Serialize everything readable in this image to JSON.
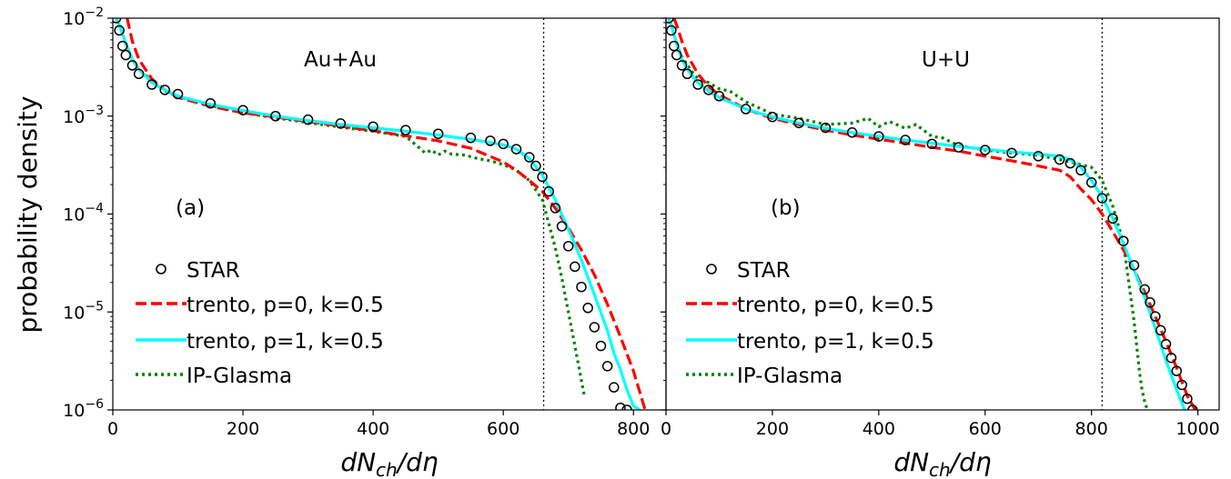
{
  "figure": {
    "ylabel": "probability density",
    "colors": {
      "star": "#000000",
      "trento_p0": "#ff0000",
      "trento_p1": "#00ffff",
      "ipglasma": "#008000",
      "vline": "#000000"
    }
  },
  "chart_data": [
    {
      "type": "line",
      "panel_label": "(a)",
      "system": "Au+Au",
      "xlabel": "dN_ch/dη",
      "ylabel": "probability density",
      "xlim": [
        0,
        850
      ],
      "ylim": [
        1e-06,
        0.01
      ],
      "yscale": "log",
      "xticks": [
        0,
        200,
        400,
        600,
        800
      ],
      "xtick_labels": [
        "0",
        "200",
        "400",
        "600",
        "800"
      ],
      "yticks": [
        1e-06,
        1e-05,
        0.0001,
        0.001,
        0.01
      ],
      "ytick_labels": [
        {
          "base": "10",
          "exp": "−6"
        },
        {
          "base": "10",
          "exp": "−5"
        },
        {
          "base": "10",
          "exp": "−4"
        },
        {
          "base": "10",
          "exp": "−3"
        },
        {
          "base": "10",
          "exp": "−2"
        }
      ],
      "vline_x": 662,
      "legend_position": "lower-left",
      "series": [
        {
          "name": "STAR",
          "style": "circles",
          "x": [
            5,
            10,
            15,
            20,
            30,
            40,
            60,
            80,
            100,
            150,
            200,
            250,
            300,
            350,
            400,
            450,
            500,
            550,
            580,
            600,
            620,
            640,
            650,
            660,
            670,
            680,
            690,
            700,
            710,
            720,
            730,
            740,
            750,
            760,
            770,
            780,
            790
          ],
          "y": [
            0.01,
            0.0075,
            0.0052,
            0.0042,
            0.0033,
            0.0027,
            0.0021,
            0.00185,
            0.00168,
            0.00135,
            0.00115,
            0.001,
            0.00092,
            0.00084,
            0.00078,
            0.00072,
            0.00066,
            0.0006,
            0.00056,
            0.00052,
            0.00046,
            0.00038,
            0.00031,
            0.00024,
            0.00017,
            0.000115,
            7.5e-05,
            4.7e-05,
            2.9e-05,
            1.8e-05,
            1.1e-05,
            7e-06,
            4.5e-06,
            2.8e-06,
            1.7e-06,
            1.05e-06,
            1e-06
          ]
        },
        {
          "name": "trento, p=0, k=0.5",
          "style": "dashed",
          "x": [
            22,
            30,
            40,
            60,
            80,
            100,
            150,
            200,
            250,
            300,
            350,
            400,
            450,
            500,
            550,
            600,
            620,
            640,
            660,
            680,
            700,
            720,
            740,
            760,
            780,
            800,
            818
          ],
          "y": [
            0.01,
            0.0058,
            0.0038,
            0.0024,
            0.00185,
            0.00155,
            0.00126,
            0.00108,
            0.00098,
            0.00088,
            0.00079,
            0.00071,
            0.00063,
            0.00056,
            0.00047,
            0.00034,
            0.00028,
            0.00022,
            0.00017,
            0.000115,
            7.2e-05,
            4.3e-05,
            2.4e-05,
            1.2e-05,
            5.6e-06,
            2.5e-06,
            1e-06
          ]
        },
        {
          "name": "trento, p=1, k=0.5",
          "style": "solid",
          "x": [
            5,
            10,
            20,
            30,
            40,
            60,
            80,
            100,
            150,
            200,
            250,
            300,
            350,
            400,
            450,
            500,
            550,
            600,
            620,
            640,
            660,
            680,
            700,
            720,
            740,
            760,
            770,
            780,
            790,
            800,
            810
          ],
          "y": [
            0.01,
            0.0085,
            0.0055,
            0.0038,
            0.003,
            0.0022,
            0.00185,
            0.0016,
            0.00132,
            0.00114,
            0.001,
            0.0009,
            0.00082,
            0.00076,
            0.0007,
            0.00064,
            0.00058,
            0.00051,
            0.00046,
            0.00037,
            0.00025,
            0.00014,
            7e-05,
            3.4e-05,
            1.5e-05,
            6.5e-06,
            3.8e-06,
            2.6e-06,
            1.6e-06,
            1.1e-06,
            1e-06
          ]
        },
        {
          "name": "IP-Glasma",
          "style": "dotted",
          "x": [
            10,
            20,
            30,
            40,
            60,
            80,
            100,
            120,
            150,
            175,
            200,
            250,
            300,
            350,
            400,
            450,
            470,
            480,
            490,
            500,
            510,
            520,
            540,
            560,
            580,
            600,
            620,
            640,
            660,
            670,
            680,
            690,
            700,
            710,
            720,
            725
          ],
          "y": [
            0.0085,
            0.0055,
            0.0038,
            0.003,
            0.0023,
            0.0018,
            0.0016,
            0.00145,
            0.00128,
            0.00118,
            0.00108,
            0.00096,
            0.00086,
            0.00077,
            0.0007,
            0.00062,
            0.00048,
            0.00042,
            0.00045,
            0.0004,
            0.00044,
            0.00041,
            0.0004,
            0.00037,
            0.00035,
            0.00032,
            0.00028,
            0.00022,
            0.00014,
            8e-05,
            4.5e-05,
            2.2e-05,
            1e-05,
            4.5e-06,
            2e-06,
            1.35e-06
          ]
        }
      ]
    },
    {
      "type": "line",
      "panel_label": "(b)",
      "system": "U+U",
      "xlabel": "dN_ch/dη",
      "xlim": [
        0,
        1040
      ],
      "ylim": [
        1e-06,
        0.01
      ],
      "yscale": "log",
      "xticks": [
        0,
        200,
        400,
        600,
        800,
        1000
      ],
      "xtick_labels": [
        "0",
        "200",
        "400",
        "600",
        "800",
        "1000"
      ],
      "vline_x": 820,
      "legend_position": "lower-left",
      "series": [
        {
          "name": "STAR",
          "style": "circles",
          "x": [
            5,
            10,
            15,
            20,
            30,
            40,
            60,
            80,
            100,
            150,
            200,
            250,
            300,
            350,
            400,
            450,
            500,
            550,
            600,
            650,
            700,
            740,
            760,
            780,
            800,
            820,
            840,
            860,
            880,
            900,
            910,
            920,
            930,
            940,
            950,
            960,
            970,
            980,
            990
          ],
          "y": [
            0.01,
            0.0075,
            0.0052,
            0.0042,
            0.0033,
            0.0027,
            0.0021,
            0.00185,
            0.0016,
            0.00118,
            0.00098,
            0.00085,
            0.00076,
            0.00068,
            0.00062,
            0.00057,
            0.00052,
            0.00048,
            0.00045,
            0.00042,
            0.00039,
            0.00036,
            0.00033,
            0.00028,
            0.00021,
            0.000145,
            9e-05,
            5.3e-05,
            3e-05,
            1.7e-05,
            1.25e-05,
            9e-06,
            6.5e-06,
            4.7e-06,
            3.4e-06,
            2.5e-06,
            1.8e-06,
            1.3e-06,
            1e-06
          ]
        },
        {
          "name": "trento, p=0, k=0.5",
          "style": "dashed",
          "x": [
            15,
            20,
            30,
            40,
            60,
            80,
            100,
            150,
            200,
            250,
            300,
            350,
            400,
            450,
            500,
            550,
            600,
            650,
            700,
            740,
            760,
            780,
            800,
            820,
            840,
            860,
            880,
            900,
            920,
            940,
            960,
            980,
            995
          ],
          "y": [
            0.01,
            0.0085,
            0.0058,
            0.0042,
            0.0027,
            0.002,
            0.00165,
            0.00118,
            0.00095,
            0.00082,
            0.00072,
            0.00064,
            0.00058,
            0.00053,
            0.00048,
            0.00044,
            0.00039,
            0.00035,
            0.00031,
            0.00028,
            0.00024,
            0.00018,
            0.00014,
            0.0001,
            6.6e-05,
            4.3e-05,
            2.7e-05,
            1.6e-05,
            9e-06,
            5e-06,
            2.7e-06,
            1.4e-06,
            1e-06
          ]
        },
        {
          "name": "trento, p=1, k=0.5",
          "style": "solid",
          "x": [
            5,
            10,
            20,
            30,
            40,
            60,
            80,
            100,
            150,
            200,
            250,
            300,
            350,
            400,
            450,
            500,
            550,
            600,
            650,
            700,
            740,
            760,
            780,
            800,
            820,
            840,
            860,
            880,
            900,
            920,
            940,
            960,
            975
          ],
          "y": [
            0.01,
            0.0085,
            0.0055,
            0.0038,
            0.003,
            0.0022,
            0.0018,
            0.00155,
            0.00118,
            0.00098,
            0.00085,
            0.00075,
            0.00068,
            0.00062,
            0.00057,
            0.00053,
            0.00049,
            0.00046,
            0.00043,
            0.00041,
            0.00039,
            0.00036,
            0.0003,
            0.00022,
            0.00015,
            9e-05,
            5e-05,
            2.7e-05,
            1.4e-05,
            6.8e-06,
            3.2e-06,
            1.6e-06,
            1e-06
          ]
        },
        {
          "name": "IP-Glasma",
          "style": "dotted",
          "x": [
            10,
            20,
            30,
            50,
            60,
            80,
            100,
            120,
            150,
            200,
            250,
            300,
            350,
            380,
            400,
            420,
            450,
            470,
            500,
            520,
            550,
            600,
            650,
            700,
            750,
            800,
            820,
            840,
            860,
            870,
            880,
            885,
            890,
            895,
            900,
            905
          ],
          "y": [
            0.0085,
            0.0055,
            0.004,
            0.0028,
            0.0024,
            0.0022,
            0.0019,
            0.0018,
            0.0014,
            0.00105,
            0.00095,
            0.00082,
            0.00085,
            0.00095,
            0.00078,
            0.00088,
            0.00075,
            0.00082,
            0.00062,
            0.0006,
            0.0005,
            0.00045,
            0.00042,
            0.0004,
            0.00035,
            0.0003,
            0.00022,
            0.00012,
            5e-05,
            2e-05,
            8e-06,
            4.5e-06,
            2.5e-06,
            1.6e-06,
            1.2e-06,
            1e-06
          ]
        }
      ]
    }
  ]
}
